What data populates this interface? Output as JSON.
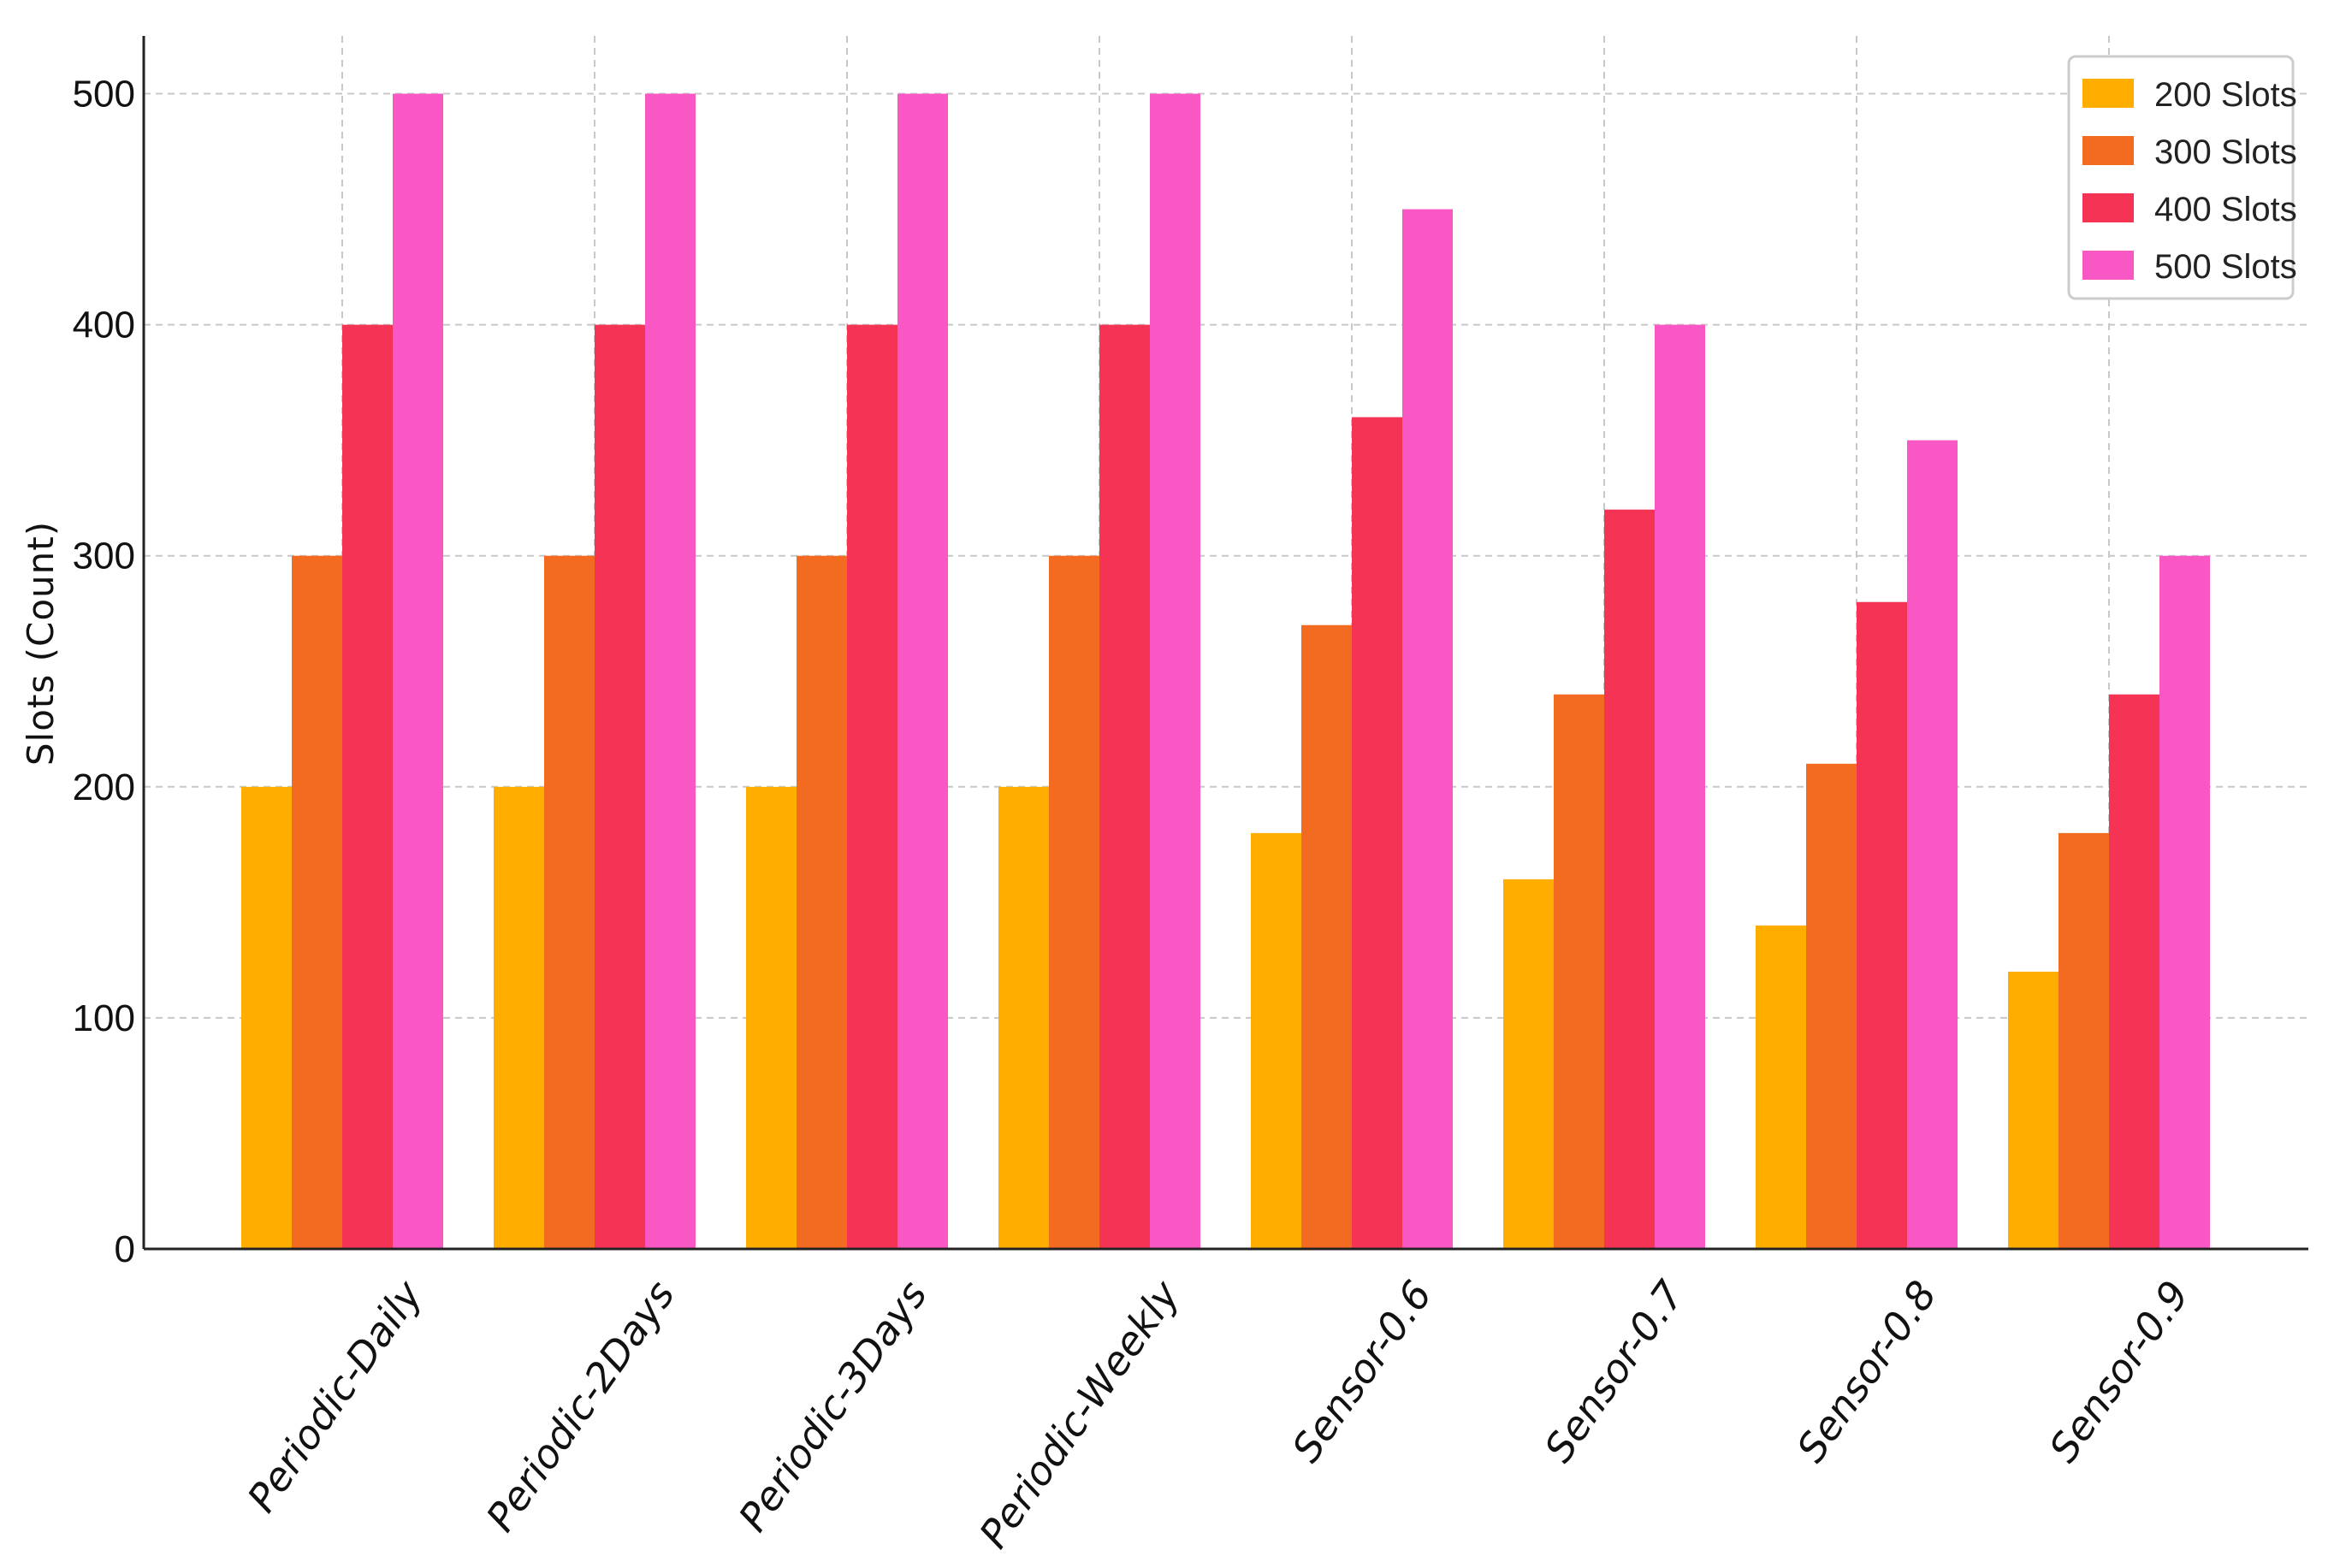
{
  "chart_data": {
    "type": "bar",
    "title": "",
    "xlabel": "",
    "ylabel": "Slots (Count)",
    "ylim": [
      0,
      525
    ],
    "yticks": [
      0,
      100,
      200,
      300,
      400,
      500
    ],
    "grid": true,
    "legend_position": "top-right",
    "categories": [
      "Periodic-Daily",
      "Periodic-2Days",
      "Periodic-3Days",
      "Periodic-Weekly",
      "Sensor-0.6",
      "Sensor-0.7",
      "Sensor-0.8",
      "Sensor-0.9"
    ],
    "series": [
      {
        "name": "200 Slots",
        "color": "#FFAE00",
        "values": [
          200,
          200,
          200,
          200,
          180,
          160,
          140,
          120
        ]
      },
      {
        "name": "300 Slots",
        "color": "#F26B21",
        "values": [
          300,
          300,
          300,
          300,
          270,
          240,
          210,
          180
        ]
      },
      {
        "name": "400 Slots",
        "color": "#F43355",
        "values": [
          400,
          400,
          400,
          400,
          360,
          320,
          280,
          240
        ]
      },
      {
        "name": "500 Slots",
        "color": "#F957C3",
        "values": [
          500,
          500,
          500,
          500,
          450,
          400,
          350,
          300
        ]
      }
    ]
  }
}
